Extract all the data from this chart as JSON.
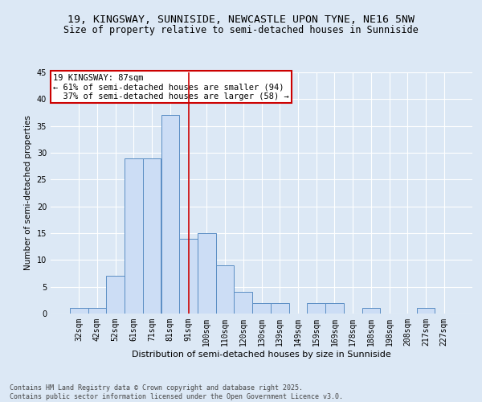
{
  "title1": "19, KINGSWAY, SUNNISIDE, NEWCASTLE UPON TYNE, NE16 5NW",
  "title2": "Size of property relative to semi-detached houses in Sunniside",
  "xlabel": "Distribution of semi-detached houses by size in Sunniside",
  "ylabel": "Number of semi-detached properties",
  "categories": [
    "32sqm",
    "42sqm",
    "52sqm",
    "61sqm",
    "71sqm",
    "81sqm",
    "91sqm",
    "100sqm",
    "110sqm",
    "120sqm",
    "130sqm",
    "139sqm",
    "149sqm",
    "159sqm",
    "169sqm",
    "178sqm",
    "188sqm",
    "198sqm",
    "208sqm",
    "217sqm",
    "227sqm"
  ],
  "values": [
    1,
    1,
    7,
    29,
    29,
    37,
    14,
    15,
    9,
    4,
    2,
    2,
    0,
    2,
    2,
    0,
    1,
    0,
    0,
    1,
    0
  ],
  "bar_color": "#ccddf5",
  "bar_edge_color": "#5b8ec4",
  "vline_index": 6,
  "vline_color": "#cc0000",
  "annotation_text": "19 KINGSWAY: 87sqm\n← 61% of semi-detached houses are smaller (94)\n  37% of semi-detached houses are larger (58) →",
  "annotation_box_color": "#ffffff",
  "annotation_box_edge_color": "#cc0000",
  "ylim": [
    0,
    45
  ],
  "yticks": [
    0,
    5,
    10,
    15,
    20,
    25,
    30,
    35,
    40,
    45
  ],
  "background_color": "#dce8f5",
  "plot_bg_color": "#dce8f5",
  "grid_color": "#ffffff",
  "footer_text": "Contains HM Land Registry data © Crown copyright and database right 2025.\nContains public sector information licensed under the Open Government Licence v3.0.",
  "title1_fontsize": 9.5,
  "title2_fontsize": 8.5,
  "xlabel_fontsize": 8,
  "ylabel_fontsize": 7.5,
  "tick_fontsize": 7,
  "annotation_fontsize": 7.5,
  "footer_fontsize": 6
}
